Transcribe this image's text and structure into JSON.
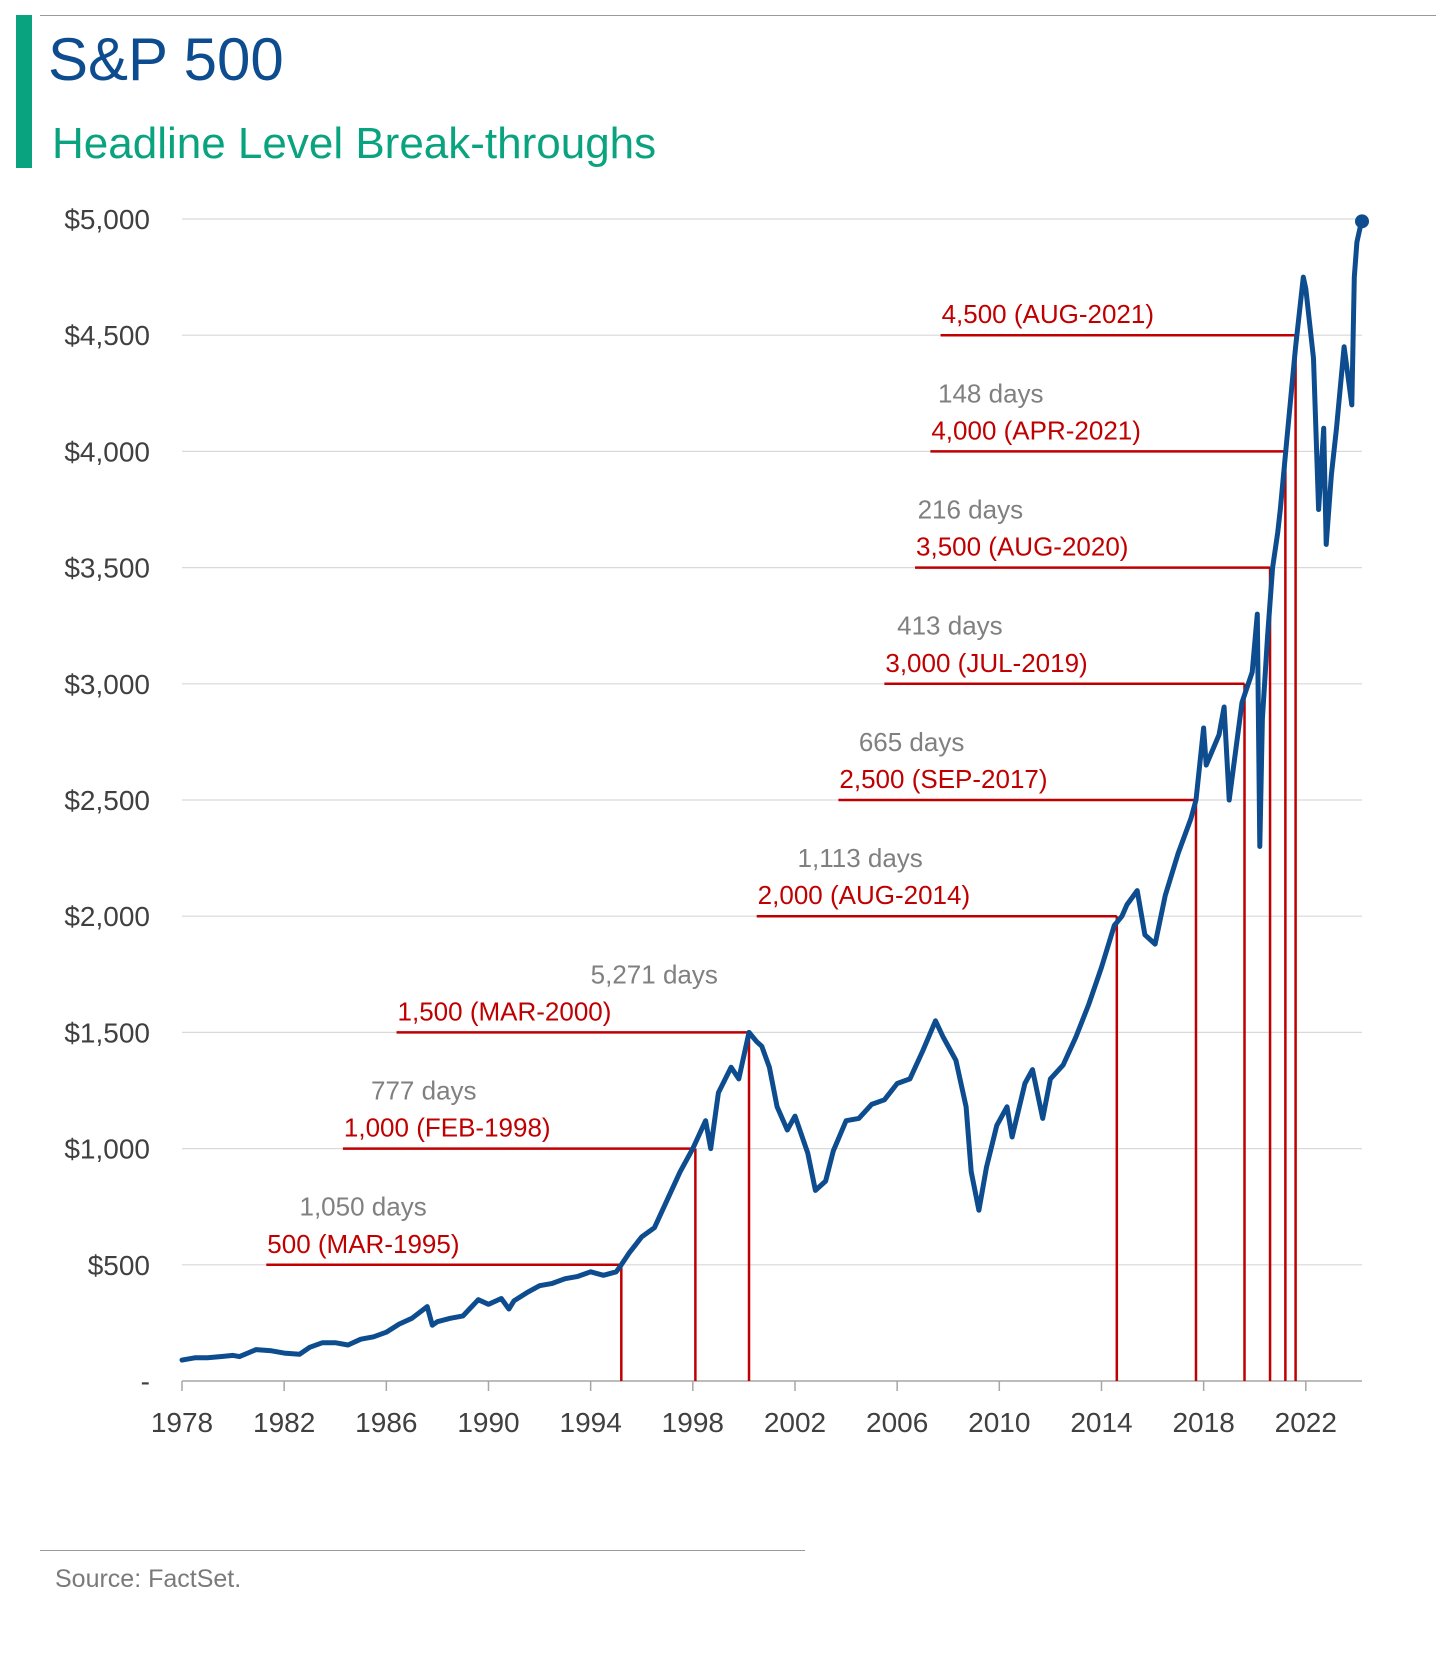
{
  "header": {
    "title": "S&P 500",
    "subtitle": "Headline Level Break-throughs",
    "accent_color": "#0aa37f",
    "title_color": "#0d4d8f"
  },
  "footer": {
    "source": "Source: FactSet."
  },
  "chart_data": {
    "type": "line",
    "title": "S&P 500",
    "subtitle": "Headline Level Break-throughs",
    "xlabel": "",
    "ylabel": "",
    "xlim": [
      1978,
      2024.2
    ],
    "ylim": [
      0,
      5000
    ],
    "x_ticks": [
      1978,
      1982,
      1986,
      1990,
      1994,
      1998,
      2002,
      2006,
      2010,
      2014,
      2018,
      2022
    ],
    "y_ticks": [
      0,
      500,
      1000,
      1500,
      2000,
      2500,
      3000,
      3500,
      4000,
      4500,
      5000
    ],
    "y_tick_labels": [
      "-",
      "$500",
      "$1,000",
      "$1,500",
      "$2,000",
      "$2,500",
      "$3,000",
      "$3,500",
      "$4,000",
      "$4,500",
      "$5,000"
    ],
    "grid": "horizontal",
    "line_color": "#0d4d8f",
    "annotation_color": "#c00000",
    "days_color": "#808080",
    "series": [
      {
        "x": [
          1978.0,
          1978.5,
          1979.0,
          1979.5,
          1980.0,
          1980.25,
          1980.9,
          1981.5,
          1982.0,
          1982.6,
          1983.0,
          1983.5,
          1984.0,
          1984.5,
          1985.0,
          1985.5,
          1986.0,
          1986.5,
          1987.0,
          1987.6,
          1987.8,
          1988.0,
          1988.5,
          1989.0,
          1989.6,
          1990.0,
          1990.5,
          1990.8,
          1991.0,
          1991.5,
          1992.0,
          1992.5,
          1993.0,
          1993.5,
          1994.0,
          1994.5,
          1995.0,
          1995.2,
          1995.5,
          1996.0,
          1996.5,
          1997.0,
          1997.5,
          1998.0,
          1998.5,
          1998.7,
          1999.0,
          1999.5,
          1999.8,
          2000.2,
          2000.5,
          2000.7,
          2001.0,
          2001.3,
          2001.7,
          2002.0,
          2002.5,
          2002.8,
          2003.2,
          2003.5,
          2004.0,
          2004.5,
          2005.0,
          2005.5,
          2006.0,
          2006.5,
          2007.0,
          2007.5,
          2007.8,
          2008.3,
          2008.7,
          2008.9,
          2009.2,
          2009.5,
          2009.9,
          2010.3,
          2010.5,
          2011.0,
          2011.3,
          2011.7,
          2012.0,
          2012.5,
          2013.0,
          2013.5,
          2014.0,
          2014.5,
          2014.8,
          2015.0,
          2015.4,
          2015.7,
          2016.1,
          2016.5,
          2017.0,
          2017.5,
          2017.7,
          2018.0,
          2018.1,
          2018.6,
          2018.8,
          2019.0,
          2019.5,
          2019.9,
          2020.1,
          2020.2,
          2020.3,
          2020.5,
          2020.7,
          2020.9,
          2021.0,
          2021.3,
          2021.6,
          2021.9,
          2022.0,
          2022.3,
          2022.5,
          2022.7,
          2022.8,
          2023.0,
          2023.2,
          2023.5,
          2023.8,
          2023.9,
          2024.0,
          2024.2
        ],
        "values": [
          90,
          100,
          100,
          105,
          110,
          105,
          135,
          130,
          120,
          115,
          145,
          165,
          165,
          155,
          180,
          190,
          210,
          245,
          270,
          320,
          240,
          255,
          270,
          280,
          350,
          330,
          355,
          310,
          345,
          380,
          410,
          420,
          440,
          450,
          470,
          455,
          470,
          500,
          550,
          620,
          660,
          780,
          900,
          1000,
          1120,
          1000,
          1240,
          1350,
          1300,
          1500,
          1460,
          1440,
          1350,
          1180,
          1080,
          1140,
          980,
          820,
          860,
          990,
          1120,
          1130,
          1190,
          1210,
          1280,
          1300,
          1420,
          1550,
          1480,
          1380,
          1180,
          900,
          735,
          920,
          1100,
          1180,
          1050,
          1280,
          1340,
          1130,
          1300,
          1360,
          1480,
          1620,
          1780,
          1960,
          2000,
          2050,
          2110,
          1920,
          1880,
          2090,
          2270,
          2420,
          2500,
          2810,
          2650,
          2780,
          2900,
          2500,
          2920,
          3050,
          3300,
          2300,
          2850,
          3200,
          3500,
          3650,
          3750,
          4100,
          4450,
          4750,
          4700,
          4400,
          3750,
          4100,
          3600,
          3900,
          4100,
          4450,
          4200,
          4750,
          4900,
          5000
        ]
      }
    ],
    "endpoint": {
      "x": 2024.2,
      "y": 4990
    },
    "breakthroughs": [
      {
        "level": 500,
        "x": 1995.2,
        "label": "500 (MAR-1995)",
        "label_x": 1981.3,
        "days": "1,050 days",
        "days_x": 1982.6
      },
      {
        "level": 1000,
        "x": 1998.1,
        "label": "1,000 (FEB-1998)",
        "label_x": 1984.3,
        "days": "777 days",
        "days_x": 1985.4
      },
      {
        "level": 1500,
        "x": 2000.2,
        "label": "1,500 (MAR-2000)",
        "label_x": 1986.4,
        "days": "5,271 days",
        "days_x": 1994.0
      },
      {
        "level": 2000,
        "x": 2014.6,
        "label": "2,000 (AUG-2014)",
        "label_x": 2000.5,
        "days": "1,113 days",
        "days_x": 2002.1
      },
      {
        "level": 2500,
        "x": 2017.7,
        "label": "2,500 (SEP-2017)",
        "label_x": 2003.7,
        "days": "665 days",
        "days_x": 2004.5
      },
      {
        "level": 3000,
        "x": 2019.6,
        "label": "3,000 (JUL-2019)",
        "label_x": 2005.5,
        "days": "413 days",
        "days_x": 2006.0
      },
      {
        "level": 3500,
        "x": 2020.6,
        "label": "3,500 (AUG-2020)",
        "label_x": 2006.7,
        "days": "216 days",
        "days_x": 2006.8
      },
      {
        "level": 4000,
        "x": 2021.2,
        "label": "4,000 (APR-2021)",
        "label_x": 2007.3,
        "days": "148 days",
        "days_x": 2007.6
      },
      {
        "level": 4500,
        "x": 2021.6,
        "label": "4,500 (AUG-2021)",
        "label_x": 2007.7,
        "days": "",
        "days_x": 0
      }
    ]
  }
}
